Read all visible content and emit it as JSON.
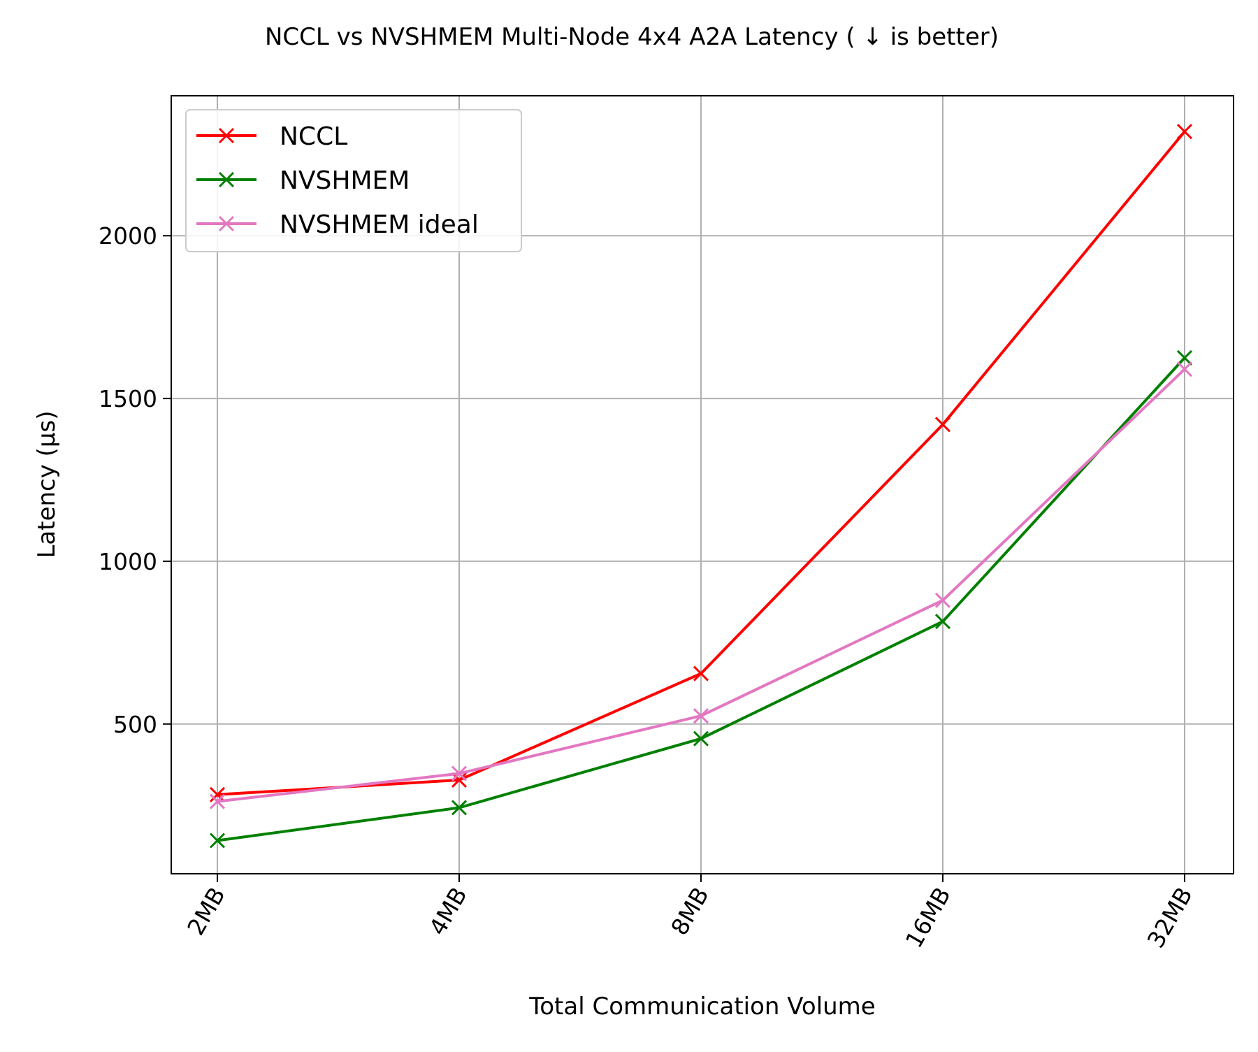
{
  "chart_data": {
    "type": "line",
    "title": "NCCL vs NVSHMEM Multi-Node 4x4 A2A Latency ( ↓  is better)",
    "xlabel": "Total Communication Volume",
    "ylabel": "Latency (μs)",
    "categories": [
      "2MB",
      "4MB",
      "8MB",
      "16MB",
      "32MB"
    ],
    "yticks": [
      500,
      1000,
      1500,
      2000
    ],
    "ylim": [
      40,
      2430
    ],
    "grid": true,
    "legend_position": "upper left",
    "series": [
      {
        "name": "NCCL",
        "color": "#ff0000",
        "marker": "x",
        "values": [
          283,
          328,
          655,
          1420,
          2320
        ]
      },
      {
        "name": "NVSHMEM",
        "color": "#008000",
        "marker": "x",
        "values": [
          142,
          243,
          455,
          815,
          1625
        ]
      },
      {
        "name": "NVSHMEM ideal",
        "color": "#e377c2",
        "marker": "x",
        "values": [
          262,
          348,
          525,
          880,
          1590
        ]
      }
    ]
  }
}
